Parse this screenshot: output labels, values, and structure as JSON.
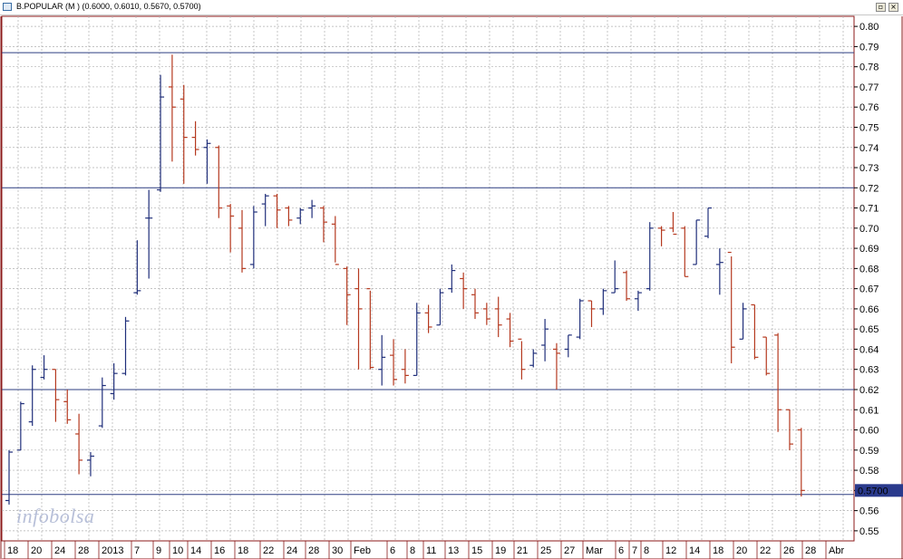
{
  "window": {
    "title": "B.POPULAR (M ) (0.6000, 0.6010, 0.5670, 0.5700)",
    "restore_glyph": "▫",
    "close_glyph": "×"
  },
  "watermark": "infobolsa",
  "chart_data": {
    "type": "ohlc",
    "title": "B.POPULAR (M ) (0.6000, 0.6010, 0.5670, 0.5700)",
    "ylim": [
      0.545,
      0.805
    ],
    "y_ticks": [
      "0.55",
      "0.56",
      "0.57",
      "0.58",
      "0.59",
      "0.60",
      "0.61",
      "0.62",
      "0.63",
      "0.64",
      "0.65",
      "0.66",
      "0.67",
      "0.68",
      "0.69",
      "0.70",
      "0.71",
      "0.72",
      "0.73",
      "0.74",
      "0.75",
      "0.76",
      "0.77",
      "0.78",
      "0.79",
      "0.80"
    ],
    "grid": true,
    "x_labels": [
      "18",
      "20",
      "24",
      "28",
      "2013",
      "7",
      "9",
      "10",
      "14",
      "16",
      "18",
      "22",
      "24",
      "28",
      "30",
      "Feb",
      "6",
      "8",
      "11",
      "13",
      "15",
      "19",
      "21",
      "25",
      "27",
      "Mar",
      "6",
      "7",
      "8",
      "12",
      "14",
      "18",
      "20",
      "22",
      "26",
      "28",
      "Abr"
    ],
    "horizontal_lines": [
      0.787,
      0.72,
      0.62,
      0.568
    ],
    "last_price_label": "0.5700",
    "up_color": "#1f2e7a",
    "down_color": "#b5391f",
    "line_color": "#2e3f82",
    "bars": [
      {
        "o": 0.565,
        "h": 0.59,
        "l": 0.563,
        "c": 0.589
      },
      {
        "o": 0.59,
        "h": 0.614,
        "l": 0.59,
        "c": 0.613
      },
      {
        "o": 0.604,
        "h": 0.632,
        "l": 0.602,
        "c": 0.63
      },
      {
        "o": 0.626,
        "h": 0.637,
        "l": 0.625,
        "c": 0.63
      },
      {
        "o": 0.63,
        "h": 0.63,
        "l": 0.604,
        "c": 0.615
      },
      {
        "o": 0.614,
        "h": 0.62,
        "l": 0.603,
        "c": 0.605
      },
      {
        "o": 0.598,
        "h": 0.608,
        "l": 0.578,
        "c": 0.585
      },
      {
        "o": 0.585,
        "h": 0.589,
        "l": 0.577,
        "c": 0.587
      },
      {
        "o": 0.602,
        "h": 0.626,
        "l": 0.601,
        "c": 0.622
      },
      {
        "o": 0.618,
        "h": 0.633,
        "l": 0.615,
        "c": 0.628
      },
      {
        "o": 0.628,
        "h": 0.656,
        "l": 0.627,
        "c": 0.654
      },
      {
        "o": 0.668,
        "h": 0.694,
        "l": 0.667,
        "c": 0.669
      },
      {
        "o": 0.705,
        "h": 0.719,
        "l": 0.675,
        "c": 0.705
      },
      {
        "o": 0.719,
        "h": 0.776,
        "l": 0.718,
        "c": 0.765
      },
      {
        "o": 0.77,
        "h": 0.786,
        "l": 0.733,
        "c": 0.76
      },
      {
        "o": 0.764,
        "h": 0.771,
        "l": 0.722,
        "c": 0.745
      },
      {
        "o": 0.745,
        "h": 0.753,
        "l": 0.736,
        "c": 0.739
      },
      {
        "o": 0.74,
        "h": 0.744,
        "l": 0.722,
        "c": 0.742
      },
      {
        "o": 0.74,
        "h": 0.741,
        "l": 0.705,
        "c": 0.71
      },
      {
        "o": 0.711,
        "h": 0.712,
        "l": 0.688,
        "c": 0.706
      },
      {
        "o": 0.7,
        "h": 0.709,
        "l": 0.678,
        "c": 0.68
      },
      {
        "o": 0.682,
        "h": 0.711,
        "l": 0.68,
        "c": 0.708
      },
      {
        "o": 0.712,
        "h": 0.717,
        "l": 0.701,
        "c": 0.716
      },
      {
        "o": 0.716,
        "h": 0.717,
        "l": 0.7,
        "c": 0.709
      },
      {
        "o": 0.71,
        "h": 0.711,
        "l": 0.701,
        "c": 0.704
      },
      {
        "o": 0.705,
        "h": 0.71,
        "l": 0.702,
        "c": 0.709
      },
      {
        "o": 0.71,
        "h": 0.714,
        "l": 0.705,
        "c": 0.711
      },
      {
        "o": 0.71,
        "h": 0.711,
        "l": 0.693,
        "c": 0.703
      },
      {
        "o": 0.702,
        "h": 0.706,
        "l": 0.683,
        "c": 0.682
      },
      {
        "o": 0.68,
        "h": 0.681,
        "l": 0.652,
        "c": 0.667
      },
      {
        "o": 0.67,
        "h": 0.68,
        "l": 0.63,
        "c": 0.66
      },
      {
        "o": 0.67,
        "h": 0.669,
        "l": 0.63,
        "c": 0.631
      },
      {
        "o": 0.63,
        "h": 0.647,
        "l": 0.622,
        "c": 0.636
      },
      {
        "o": 0.637,
        "h": 0.645,
        "l": 0.622,
        "c": 0.625
      },
      {
        "o": 0.63,
        "h": 0.64,
        "l": 0.623,
        "c": 0.627
      },
      {
        "o": 0.627,
        "h": 0.663,
        "l": 0.627,
        "c": 0.658
      },
      {
        "o": 0.658,
        "h": 0.662,
        "l": 0.648,
        "c": 0.651
      },
      {
        "o": 0.652,
        "h": 0.67,
        "l": 0.652,
        "c": 0.668
      },
      {
        "o": 0.67,
        "h": 0.682,
        "l": 0.668,
        "c": 0.679
      },
      {
        "o": 0.675,
        "h": 0.678,
        "l": 0.66,
        "c": 0.67
      },
      {
        "o": 0.667,
        "h": 0.67,
        "l": 0.655,
        "c": 0.658
      },
      {
        "o": 0.66,
        "h": 0.663,
        "l": 0.652,
        "c": 0.655
      },
      {
        "o": 0.66,
        "h": 0.666,
        "l": 0.646,
        "c": 0.652
      },
      {
        "o": 0.655,
        "h": 0.658,
        "l": 0.641,
        "c": 0.644
      },
      {
        "o": 0.645,
        "h": 0.644,
        "l": 0.625,
        "c": 0.63
      },
      {
        "o": 0.632,
        "h": 0.64,
        "l": 0.631,
        "c": 0.638
      },
      {
        "o": 0.642,
        "h": 0.655,
        "l": 0.634,
        "c": 0.65
      },
      {
        "o": 0.64,
        "h": 0.643,
        "l": 0.62,
        "c": 0.638
      },
      {
        "o": 0.64,
        "h": 0.647,
        "l": 0.636,
        "c": 0.647
      },
      {
        "o": 0.646,
        "h": 0.665,
        "l": 0.645,
        "c": 0.664
      },
      {
        "o": 0.664,
        "h": 0.664,
        "l": 0.651,
        "c": 0.66
      },
      {
        "o": 0.66,
        "h": 0.67,
        "l": 0.657,
        "c": 0.669
      },
      {
        "o": 0.668,
        "h": 0.684,
        "l": 0.668,
        "c": 0.67
      },
      {
        "o": 0.678,
        "h": 0.679,
        "l": 0.664,
        "c": 0.665
      },
      {
        "o": 0.665,
        "h": 0.669,
        "l": 0.659,
        "c": 0.668
      },
      {
        "o": 0.67,
        "h": 0.703,
        "l": 0.669,
        "c": 0.7
      },
      {
        "o": 0.7,
        "h": 0.701,
        "l": 0.691,
        "c": 0.699
      },
      {
        "o": 0.7,
        "h": 0.708,
        "l": 0.698,
        "c": 0.697
      },
      {
        "o": 0.7,
        "h": 0.701,
        "l": 0.676,
        "c": 0.676
      },
      {
        "o": 0.682,
        "h": 0.704,
        "l": 0.682,
        "c": 0.704
      },
      {
        "o": 0.696,
        "h": 0.71,
        "l": 0.695,
        "c": 0.71
      },
      {
        "o": 0.682,
        "h": 0.69,
        "l": 0.667,
        "c": 0.683
      },
      {
        "o": 0.688,
        "h": 0.686,
        "l": 0.633,
        "c": 0.641
      },
      {
        "o": 0.645,
        "h": 0.663,
        "l": 0.645,
        "c": 0.66
      },
      {
        "o": 0.662,
        "h": 0.662,
        "l": 0.635,
        "c": 0.636
      },
      {
        "o": 0.646,
        "h": 0.646,
        "l": 0.627,
        "c": 0.628
      },
      {
        "o": 0.647,
        "h": 0.648,
        "l": 0.599,
        "c": 0.61
      },
      {
        "o": 0.61,
        "h": 0.61,
        "l": 0.59,
        "c": 0.593
      },
      {
        "o": 0.6,
        "h": 0.601,
        "l": 0.567,
        "c": 0.57
      }
    ]
  }
}
